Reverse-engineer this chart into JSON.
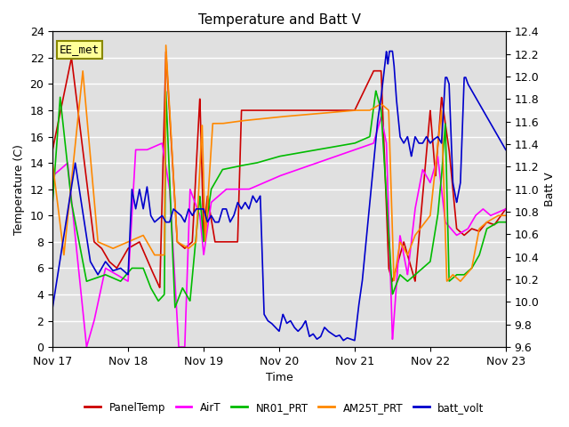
{
  "title": "Temperature and Batt V",
  "xlabel": "Time",
  "ylabel_left": "Temperature (C)",
  "ylabel_right": "Batt V",
  "annotation": "EE_met",
  "ylim_left": [
    0,
    24
  ],
  "ylim_right": [
    9.6,
    12.4
  ],
  "xtick_labels": [
    "Nov 17",
    "Nov 18",
    "Nov 19",
    "Nov 20",
    "Nov 21",
    "Nov 22",
    "Nov 23"
  ],
  "ytick_left": [
    0,
    2,
    4,
    6,
    8,
    10,
    12,
    14,
    16,
    18,
    20,
    22,
    24
  ],
  "ytick_right": [
    9.6,
    9.8,
    10.0,
    10.2,
    10.4,
    10.6,
    10.8,
    11.0,
    11.2,
    11.4,
    11.6,
    11.8,
    12.0,
    12.2,
    12.4
  ],
  "bg_color": "#e0e0e0",
  "grid_color": "#ffffff",
  "title_fontsize": 11,
  "label_fontsize": 9,
  "tick_fontsize": 9,
  "series": {
    "PanelTemp": {
      "color": "#cc0000",
      "lw": 1.2
    },
    "AirT": {
      "color": "#ff00ff",
      "lw": 1.2
    },
    "NR01_PRT": {
      "color": "#00bb00",
      "lw": 1.2
    },
    "AM25T_PRT": {
      "color": "#ff8800",
      "lw": 1.2
    },
    "batt_volt": {
      "color": "#0000cc",
      "lw": 1.2
    }
  },
  "legend_entries": [
    "PanelTemp",
    "AirT",
    "NR01_PRT",
    "AM25T_PRT",
    "batt_volt"
  ],
  "legend_colors": [
    "#cc0000",
    "#ff00ff",
    "#00bb00",
    "#ff8800",
    "#0000cc"
  ]
}
